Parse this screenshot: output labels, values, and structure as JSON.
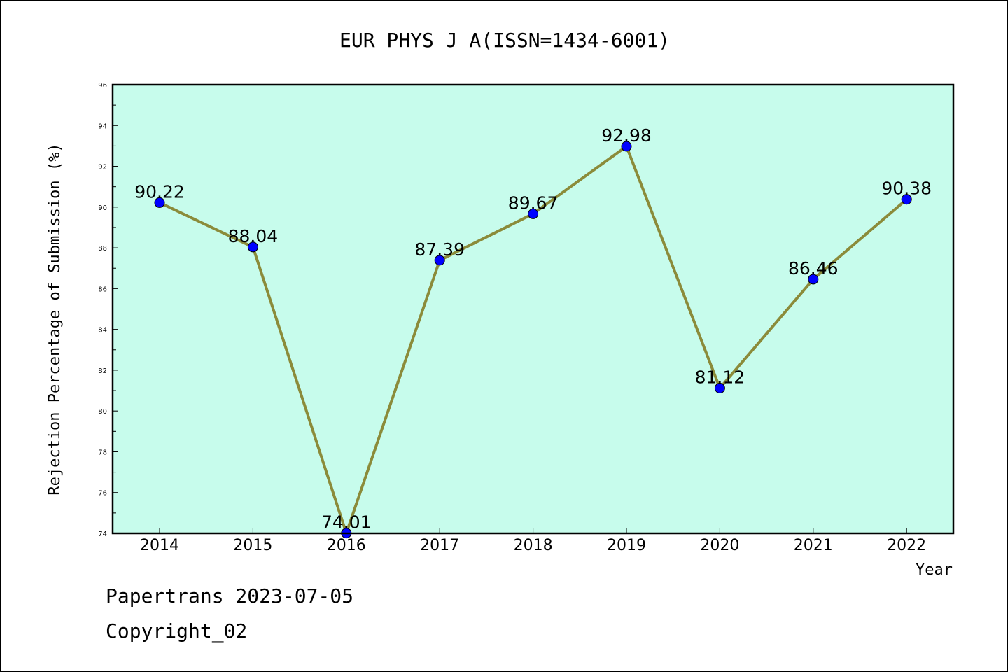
{
  "chart_data": {
    "type": "line",
    "title": "EUR PHYS J A(ISSN=1434-6001)",
    "xlabel": "Year",
    "ylabel": "Rejection Percentage of Submission (%)",
    "categories": [
      "2014",
      "2015",
      "2016",
      "2017",
      "2018",
      "2019",
      "2020",
      "2021",
      "2022"
    ],
    "series": [
      {
        "values": [
          90.22,
          88.04,
          74.01,
          87.39,
          89.67,
          92.98,
          81.12,
          86.46,
          90.38
        ],
        "labels": [
          "90.22",
          "88.04",
          "74.01",
          "87.39",
          "89.67",
          "92.98",
          "81.12",
          "86.46",
          "90.38"
        ]
      }
    ],
    "ylim": [
      74,
      96
    ],
    "yticks": [
      "74",
      "76",
      "78",
      "80",
      "82",
      "84",
      "86",
      "88",
      "90",
      "92",
      "94",
      "96"
    ],
    "grid": false,
    "colors": {
      "plot_background": "#c7fcec",
      "line": "#8b8b3a",
      "marker": "#0000ff"
    }
  },
  "footer": {
    "line1": "Papertrans 2023-07-05",
    "line2": "Copyright_02"
  }
}
